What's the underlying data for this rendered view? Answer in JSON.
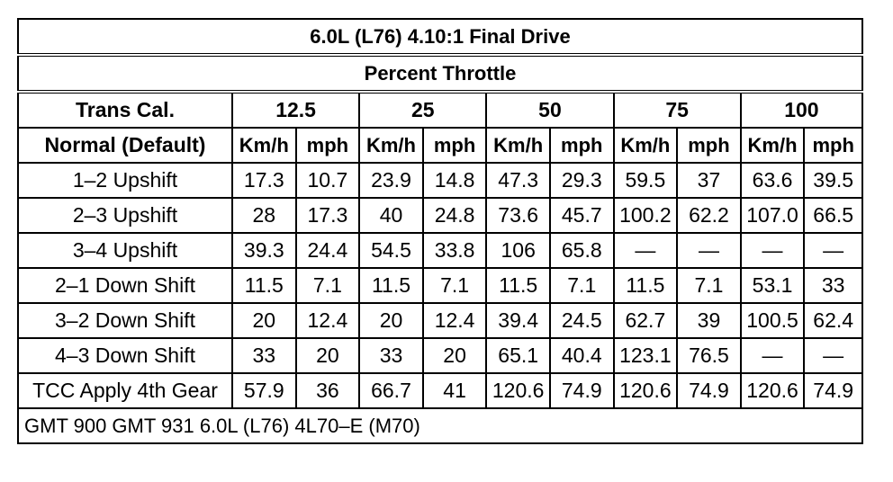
{
  "title": "6.0L (L76) 4.10:1 Final Drive",
  "subtitle": "Percent Throttle",
  "header": {
    "trans_cal_label": "Trans Cal.",
    "throttle_levels": [
      "12.5",
      "25",
      "50",
      "75",
      "100"
    ],
    "mode_label": "Normal (Default)",
    "unit_kmh": "Km/h",
    "unit_mph": "mph"
  },
  "rows": [
    {
      "label": "1–2 Upshift",
      "values": [
        "17.3",
        "10.7",
        "23.9",
        "14.8",
        "47.3",
        "29.3",
        "59.5",
        "37",
        "63.6",
        "39.5"
      ]
    },
    {
      "label": "2–3 Upshift",
      "values": [
        "28",
        "17.3",
        "40",
        "24.8",
        "73.6",
        "45.7",
        "100.2",
        "62.2",
        "107.0",
        "66.5"
      ]
    },
    {
      "label": "3–4 Upshift",
      "values": [
        "39.3",
        "24.4",
        "54.5",
        "33.8",
        "106",
        "65.8",
        "—",
        "—",
        "—",
        "—"
      ]
    },
    {
      "label": "2–1 Down Shift",
      "values": [
        "11.5",
        "7.1",
        "11.5",
        "7.1",
        "11.5",
        "7.1",
        "11.5",
        "7.1",
        "53.1",
        "33"
      ]
    },
    {
      "label": "3–2 Down Shift",
      "values": [
        "20",
        "12.4",
        "20",
        "12.4",
        "39.4",
        "24.5",
        "62.7",
        "39",
        "100.5",
        "62.4"
      ]
    },
    {
      "label": "4–3 Down Shift",
      "values": [
        "33",
        "20",
        "33",
        "20",
        "65.1",
        "40.4",
        "123.1",
        "76.5",
        "—",
        "—"
      ]
    },
    {
      "label": "TCC Apply 4th Gear",
      "values": [
        "57.9",
        "36",
        "66.7",
        "41",
        "120.6",
        "74.9",
        "120.6",
        "74.9",
        "120.6",
        "74.9"
      ]
    }
  ],
  "footer": "GMT 900 GMT 931 6.0L (L76) 4L70–E (M70)"
}
